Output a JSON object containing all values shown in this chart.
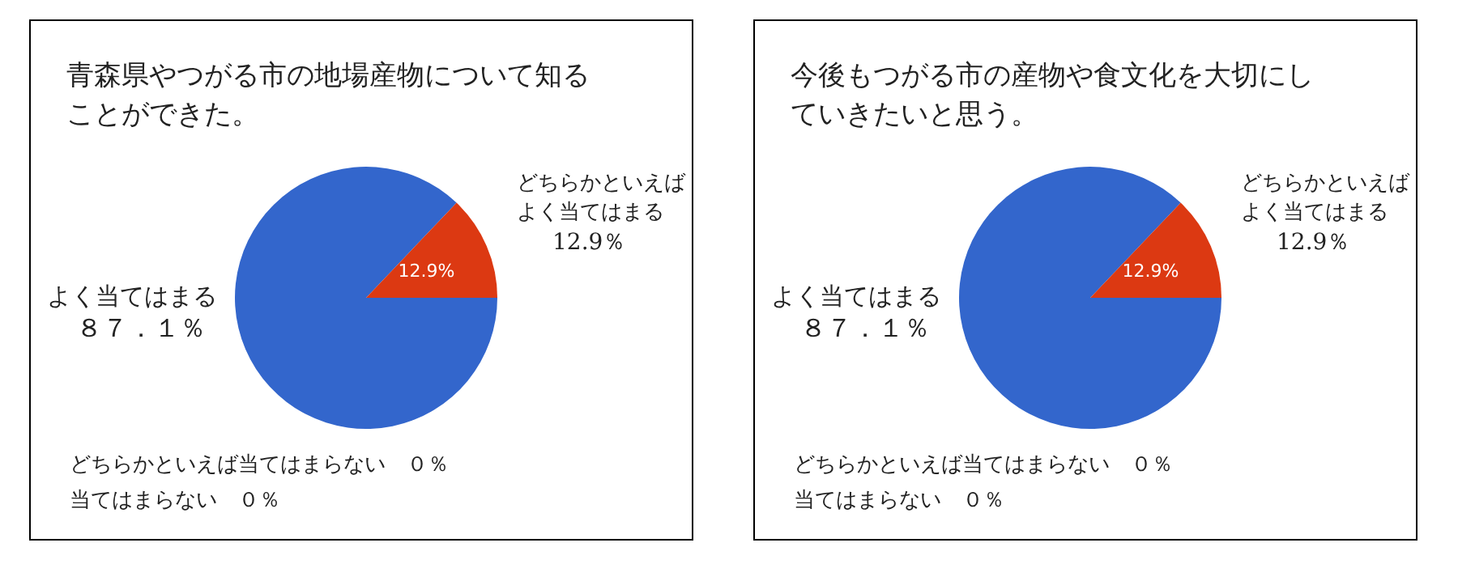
{
  "chart_data": [
    {
      "type": "pie",
      "title": "青森県やつがる市の地場産物について知ることができた。",
      "categories": [
        "よく当てはまる",
        "どちらかといえばよく当てはまる",
        "どちらかといえば当てはまらない",
        "当てはまらない"
      ],
      "values": [
        87.1,
        12.9,
        0,
        0
      ],
      "colors": [
        "#3366cc",
        "#dc3912",
        "#ff9900",
        "#109618"
      ],
      "value_labels": [
        "８７．１％",
        "12.9％",
        "０％",
        "０％"
      ],
      "annotations": [
        "12.9%"
      ]
    },
    {
      "type": "pie",
      "title": "今後もつがる市の産物や食文化を大切にしていきたいと思う。",
      "categories": [
        "よく当てはまる",
        "どちらかといえばよく当てはまる",
        "どちらかといえば当てはまらない",
        "当てはまらない"
      ],
      "values": [
        87.1,
        12.9,
        0,
        0
      ],
      "colors": [
        "#3366cc",
        "#dc3912",
        "#ff9900",
        "#109618"
      ],
      "value_labels": [
        "８７．１％",
        "12.9％",
        "０％",
        "０％"
      ],
      "annotations": [
        "12.9%"
      ]
    }
  ]
}
